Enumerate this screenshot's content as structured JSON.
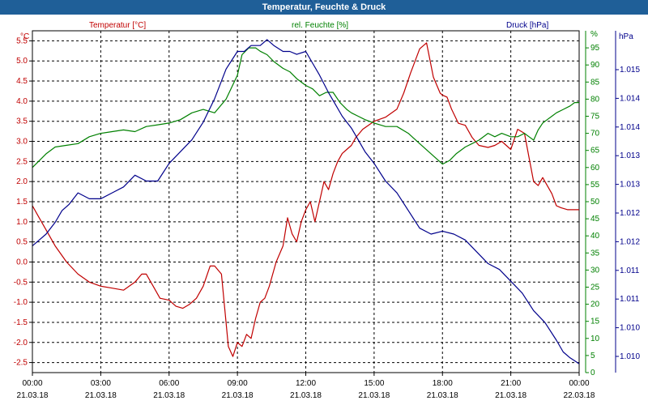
{
  "window": {
    "title": "Temperatur, Feuchte & Druck"
  },
  "chart_data": {
    "type": "line",
    "title": "Temperatur, Feuchte & Druck",
    "grid": true,
    "x_ticks": [
      {
        "time": "00:00",
        "date": "21.03.18"
      },
      {
        "time": "03:00",
        "date": "21.03.18"
      },
      {
        "time": "06:00",
        "date": "21.03.18"
      },
      {
        "time": "09:00",
        "date": "21.03.18"
      },
      {
        "time": "12:00",
        "date": "21.03.18"
      },
      {
        "time": "15:00",
        "date": "21.03.18"
      },
      {
        "time": "18:00",
        "date": "21.03.18"
      },
      {
        "time": "21:00",
        "date": "21.03.18"
      },
      {
        "time": "00:00",
        "date": "22.03.18"
      }
    ],
    "xlim_hours": [
      0,
      24
    ],
    "axes": {
      "temperature": {
        "label": "Temperatur [°C]",
        "unit": "°C",
        "color": "#c00000",
        "side": "left",
        "ylim": [
          -2.75,
          5.75
        ],
        "ticks": [
          "5.5",
          "5.0",
          "4.5",
          "4.0",
          "3.5",
          "3.0",
          "2.5",
          "2.0",
          "1.5",
          "1.0",
          "0.5",
          "0.0",
          "-0.5",
          "-1.0",
          "-1.5",
          "-2.0",
          "-2.5"
        ]
      },
      "humidity": {
        "label": "rel. Feuchte [%]",
        "unit": "%",
        "color": "#008000",
        "side": "right",
        "ylim": [
          0,
          100
        ],
        "ticks": [
          "95",
          "90",
          "85",
          "80",
          "75",
          "70",
          "65",
          "60",
          "55",
          "50",
          "45",
          "40",
          "35",
          "30",
          "25",
          "20",
          "15",
          "10",
          "5",
          "0"
        ],
        "top_label": "%"
      },
      "pressure": {
        "label": "Druck [hPa]",
        "unit": "hPa",
        "color": "#00008b",
        "side": "right",
        "ylim": [
          1009.75,
          1015.55
        ],
        "ticks": [
          "1.015",
          "1.014",
          "1.014",
          "1.013",
          "1.013",
          "1.012",
          "1.012",
          "1.011",
          "1.011",
          "1.010",
          "1.010"
        ]
      }
    },
    "series": [
      {
        "name": "Temperatur [°C]",
        "axis": "temperature",
        "color": "#c00000",
        "x": [
          0,
          0.3,
          0.6,
          1,
          1.5,
          2,
          2.5,
          3,
          3.5,
          4,
          4.5,
          4.8,
          5,
          5.3,
          5.6,
          6,
          6.3,
          6.6,
          6.9,
          7.2,
          7.5,
          7.8,
          8,
          8.3,
          8.6,
          8.8,
          9,
          9.2,
          9.4,
          9.6,
          9.8,
          10,
          10.2,
          10.4,
          10.7,
          11,
          11.2,
          11.4,
          11.6,
          11.8,
          12,
          12.2,
          12.4,
          12.6,
          12.8,
          13,
          13.2,
          13.4,
          13.6,
          13.8,
          14,
          14.2,
          14.5,
          15,
          15.5,
          16,
          16.3,
          16.6,
          17,
          17.3,
          17.6,
          17.9,
          18,
          18.2,
          18.4,
          18.7,
          19,
          19.3,
          19.6,
          20,
          20.3,
          20.6,
          21,
          21.3,
          21.6,
          21.8,
          22,
          22.2,
          22.4,
          22.6,
          22.8,
          23,
          23.2,
          23.5,
          23.8,
          24
        ],
        "values": [
          1.4,
          1.1,
          0.8,
          0.4,
          0,
          -0.3,
          -0.5,
          -0.6,
          -0.65,
          -0.7,
          -0.5,
          -0.3,
          -0.3,
          -0.6,
          -0.9,
          -0.95,
          -1.1,
          -1.15,
          -1.05,
          -0.9,
          -0.6,
          -0.1,
          -0.1,
          -0.3,
          -2.1,
          -2.35,
          -2.0,
          -2.1,
          -1.8,
          -1.9,
          -1.4,
          -1.0,
          -0.9,
          -0.6,
          0.0,
          0.4,
          1.1,
          0.7,
          0.5,
          1.0,
          1.3,
          1.5,
          1.0,
          1.5,
          2.0,
          1.8,
          2.2,
          2.5,
          2.7,
          2.8,
          2.9,
          3.1,
          3.3,
          3.5,
          3.6,
          3.8,
          4.2,
          4.7,
          5.3,
          5.45,
          4.6,
          4.2,
          4.15,
          4.1,
          3.8,
          3.45,
          3.4,
          3.1,
          2.9,
          2.85,
          2.9,
          3.0,
          2.8,
          3.3,
          3.2,
          2.6,
          2.0,
          1.9,
          2.1,
          1.9,
          1.7,
          1.4,
          1.35,
          1.3,
          1.3,
          1.3
        ]
      },
      {
        "name": "rel. Feuchte [%]",
        "axis": "humidity",
        "color": "#008000",
        "x": [
          0,
          0.3,
          0.6,
          1,
          1.5,
          2,
          2.5,
          3,
          3.5,
          4,
          4.5,
          5,
          5.5,
          6,
          6.5,
          7,
          7.5,
          8,
          8.5,
          9,
          9.2,
          9.5,
          9.8,
          10,
          10.3,
          10.6,
          11,
          11.3,
          11.6,
          12,
          12.3,
          12.6,
          12.9,
          13.2,
          13.5,
          13.8,
          14,
          14.3,
          14.6,
          15,
          15.5,
          16,
          16.5,
          17,
          17.5,
          18,
          18.3,
          18.6,
          19,
          19.3,
          19.6,
          20,
          20.3,
          20.6,
          21,
          21.3,
          21.6,
          21.8,
          22,
          22.2,
          22.4,
          22.6,
          22.8,
          23,
          23.3,
          23.6,
          23.8,
          24
        ],
        "values": [
          60,
          62,
          64,
          66,
          66.5,
          67,
          69,
          70,
          70.5,
          71,
          70.5,
          72,
          72.5,
          73,
          74,
          76,
          77,
          76,
          80,
          87,
          93,
          95,
          95,
          94,
          93,
          91,
          89,
          88,
          86,
          84,
          83,
          81,
          82,
          82,
          79,
          77,
          76,
          75,
          74,
          73,
          72,
          72,
          70,
          67,
          64,
          61,
          62,
          64,
          66,
          67,
          68,
          70,
          69,
          70,
          69,
          69,
          70,
          69,
          68,
          71,
          73,
          74,
          75,
          76,
          77,
          78,
          79,
          79
        ]
      },
      {
        "name": "Druck [hPa]",
        "axis": "pressure",
        "color": "#00008b",
        "x": [
          0,
          0.3,
          0.6,
          1,
          1.3,
          1.6,
          2,
          2.5,
          3,
          3.5,
          4,
          4.5,
          5,
          5.5,
          6,
          6.5,
          7,
          7.5,
          8,
          8.5,
          9,
          9.3,
          9.6,
          10,
          10.3,
          10.6,
          11,
          11.3,
          11.6,
          12,
          12.3,
          12.6,
          13,
          13.3,
          13.6,
          14,
          14.3,
          14.6,
          15,
          15.5,
          16,
          16.5,
          17,
          17.5,
          18,
          18.5,
          19,
          19.5,
          20,
          20.5,
          21,
          21.5,
          22,
          22.5,
          23,
          23.3,
          23.6,
          23.8,
          24
        ],
        "values": [
          1011.9,
          1012.0,
          1012.1,
          1012.3,
          1012.5,
          1012.6,
          1012.8,
          1012.7,
          1012.7,
          1012.8,
          1012.9,
          1013.1,
          1013.0,
          1013.0,
          1013.3,
          1013.5,
          1013.7,
          1014.0,
          1014.4,
          1014.9,
          1015.2,
          1015.2,
          1015.3,
          1015.3,
          1015.4,
          1015.3,
          1015.2,
          1015.2,
          1015.15,
          1015.2,
          1015.0,
          1014.8,
          1014.5,
          1014.3,
          1014.1,
          1013.9,
          1013.7,
          1013.5,
          1013.3,
          1013.0,
          1012.8,
          1012.5,
          1012.2,
          1012.1,
          1012.15,
          1012.1,
          1012.0,
          1011.8,
          1011.6,
          1011.5,
          1011.3,
          1011.1,
          1010.8,
          1010.6,
          1010.3,
          1010.1,
          1010.0,
          1009.95,
          1009.9
        ]
      }
    ]
  }
}
